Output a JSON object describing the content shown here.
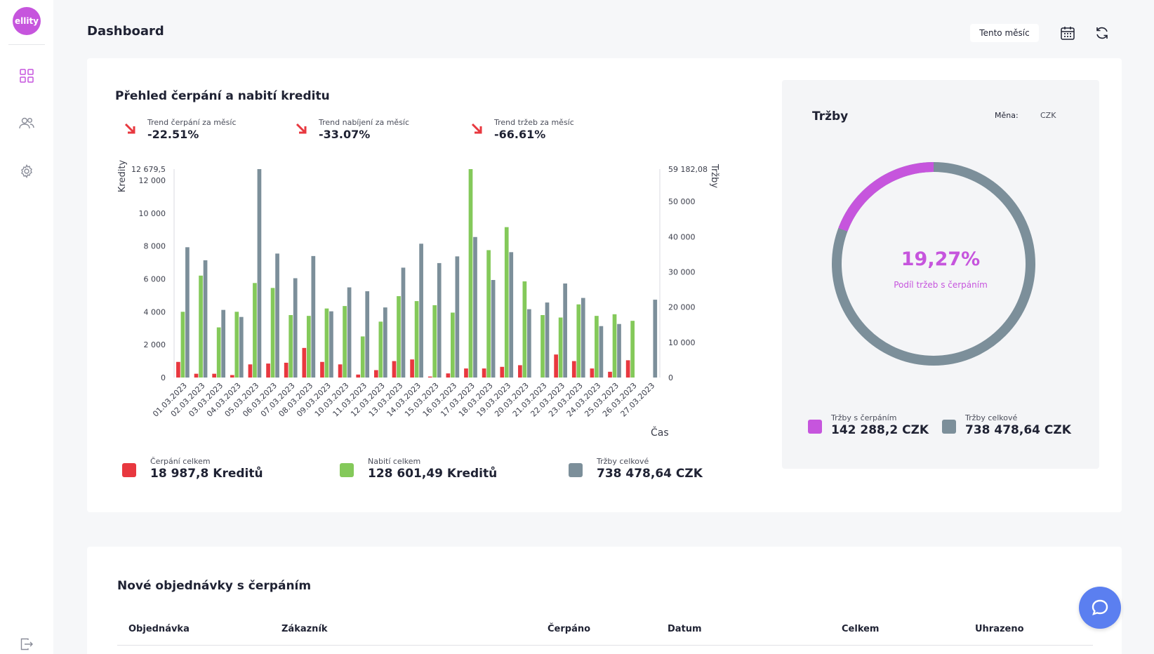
{
  "app": {
    "logo_text": "ellity"
  },
  "sidebar": {
    "items": [
      {
        "icon": "dashboard-grid-icon",
        "active": true
      },
      {
        "icon": "users-icon",
        "active": false
      },
      {
        "icon": "gear-icon",
        "active": false
      }
    ],
    "logout_icon": "logout-icon"
  },
  "header": {
    "title": "Dashboard",
    "period_label": "Tento měsíc",
    "calendar_icon": "calendar-icon",
    "refresh_icon": "refresh-icon"
  },
  "overview": {
    "title": "Přehled čerpání a nabití kreditu",
    "trends": [
      {
        "label": "Trend čerpání za měsíc",
        "value": "-22.51%",
        "icon": "trend-down-arrow-icon"
      },
      {
        "label": "Trend nabíjení za měsíc",
        "value": "-33.07%",
        "icon": "trend-down-arrow-icon"
      },
      {
        "label": "Trend tržeb za měsíc",
        "value": "-66.61%",
        "icon": "trend-down-arrow-icon"
      }
    ],
    "legend": [
      {
        "label": "Čerpání celkem",
        "value": "18 987,8 Kreditů",
        "color": "#e8383f"
      },
      {
        "label": "Nabití celkem",
        "value": "128 601,49 Kreditů",
        "color": "#84c95a"
      },
      {
        "label": "Tržby celkové",
        "value": "738 478,64 CZK",
        "color": "#7c8f9a"
      }
    ]
  },
  "chart_data": {
    "type": "bar",
    "categories": [
      "01.03.2023",
      "02.03.2023",
      "03.03.2023",
      "04.03.2023",
      "05.03.2023",
      "06.03.2023",
      "07.03.2023",
      "08.03.2023",
      "09.03.2023",
      "10.03.2023",
      "11.03.2023",
      "12.03.2023",
      "13.03.2023",
      "14.03.2023",
      "15.03.2023",
      "16.03.2023",
      "17.03.2023",
      "18.03.2023",
      "19.03.2023",
      "20.03.2023",
      "21.03.2023",
      "22.03.2023",
      "23.03.2023",
      "24.03.2023",
      "25.03.2023",
      "26.03.2023",
      "27.03.2023"
    ],
    "series": [
      {
        "color": "#e8383f",
        "axis": "left",
        "values": [
          950,
          230,
          230,
          150,
          800,
          850,
          900,
          1800,
          950,
          800,
          180,
          450,
          1000,
          1100,
          60,
          250,
          550,
          550,
          650,
          750,
          0,
          1400,
          1000,
          550,
          350,
          1050,
          0
        ]
      },
      {
        "color": "#84c95a",
        "axis": "left",
        "values": [
          4000,
          6200,
          3050,
          4000,
          5750,
          5450,
          3800,
          3750,
          4200,
          4350,
          2500,
          3400,
          4950,
          4650,
          4400,
          3950,
          12679.5,
          7750,
          9150,
          5850,
          3800,
          3650,
          4450,
          3750,
          3850,
          3450,
          0
        ]
      },
      {
        "color": "#7c8f9a",
        "axis": "right",
        "values": [
          37000,
          33300,
          19200,
          17200,
          59182.08,
          35200,
          28200,
          34500,
          18800,
          25600,
          24500,
          19900,
          31200,
          38000,
          32500,
          34400,
          39900,
          27700,
          35600,
          19400,
          21300,
          26700,
          22600,
          14600,
          15200,
          0,
          22100
        ]
      }
    ],
    "ylabel": "Kredity",
    "ylabel_right": "Tržby",
    "xlabel": "Čas",
    "ylim": [
      0,
      12679.5
    ],
    "ylim_right": [
      0,
      59182.08
    ],
    "yticks": [
      "0",
      "2 000",
      "4 000",
      "6 000",
      "8 000",
      "10 000",
      "12 000"
    ],
    "yticks_values": [
      0,
      2000,
      4000,
      6000,
      8000,
      10000,
      12000
    ],
    "ymax_label": "12 679,5",
    "yticks_right": [
      "0",
      "10 000",
      "20 000",
      "30 000",
      "40 000",
      "50 000"
    ],
    "yticks_right_values": [
      0,
      10000,
      20000,
      30000,
      40000,
      50000
    ],
    "ymax_right_label": "59 182,08"
  },
  "revenue": {
    "title": "Tržby",
    "currency_label": "Měna:",
    "currency": "CZK",
    "donut_percent": "19,27%",
    "donut_fraction": 0.1927,
    "donut_caption": "Podíl tržeb s čerpáním",
    "colors": {
      "part": "#c655dd",
      "rest": "#7c8f9a"
    },
    "legend": [
      {
        "label": "Tržby s čerpáním",
        "value": "142 288,2 CZK",
        "color": "#c655dd"
      },
      {
        "label": "Tržby celkové",
        "value": "738 478,64 CZK",
        "color": "#7c8f9a"
      }
    ]
  },
  "orders": {
    "title": "Nové objednávky s čerpáním",
    "columns": [
      "Objednávka",
      "Zákazník",
      "Čerpáno",
      "Datum",
      "Celkem",
      "Uhrazeno"
    ]
  },
  "chat": {
    "icon": "chat-bubble-icon"
  }
}
